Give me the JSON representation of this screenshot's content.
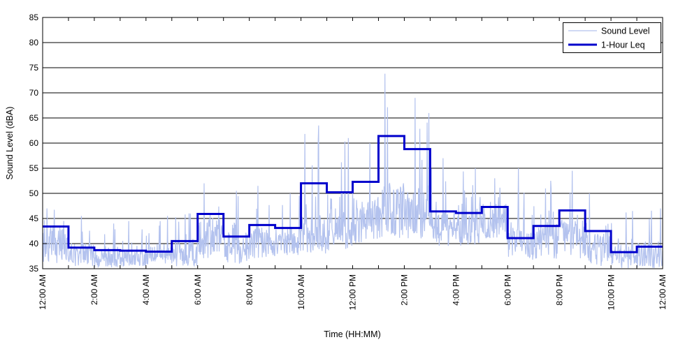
{
  "figure": {
    "background": "#ffffff",
    "axis_color": "#000000",
    "legend": [
      {
        "label": "Sound Level",
        "color": "#b3c2ee",
        "stroke_width": 1.2
      },
      {
        "label": "1-Hour Leq",
        "color": "#0000cc",
        "stroke_width": 3
      }
    ]
  },
  "chart_data": {
    "type": "line",
    "title": "",
    "xlabel": "Time (HH:MM)",
    "ylabel": "Sound Level (dBA)",
    "ylim": [
      35,
      85
    ],
    "xlim_hours": [
      0,
      24
    ],
    "y_ticks": [
      35,
      40,
      45,
      50,
      55,
      60,
      65,
      70,
      75,
      80,
      85
    ],
    "x_tick_labels": [
      "12:00 AM",
      "2:00 AM",
      "4:00 AM",
      "6:00 AM",
      "8:00 AM",
      "10:00 AM",
      "12:00 PM",
      "2:00 PM",
      "4:00 PM",
      "6:00 PM",
      "8:00 PM",
      "10:00 PM",
      "12:00 AM"
    ],
    "x_tick_interval_hours": 2,
    "minor_tick_interval_hours": 1,
    "grid": "horizontal solid black lines every 5 dBA, no vertical gridlines",
    "legend_position": "top-right inside plot",
    "series": [
      {
        "name": "1-Hour Leq",
        "style": "step",
        "color": "#0000cc",
        "hours": [
          0,
          1,
          2,
          3,
          4,
          5,
          6,
          7,
          8,
          9,
          10,
          11,
          12,
          13,
          14,
          15,
          16,
          17,
          18,
          19,
          20,
          21,
          22,
          23
        ],
        "values": [
          43.4,
          39.2,
          38.7,
          38.6,
          38.4,
          40.5,
          45.9,
          41.4,
          43.7,
          43.1,
          52.0,
          50.2,
          52.3,
          61.4,
          58.8,
          46.4,
          46.1,
          47.3,
          41.1,
          43.5,
          46.6,
          42.5,
          38.3,
          39.4
        ]
      },
      {
        "name": "Sound Level",
        "style": "noisy high-rate samples (~1 minute)",
        "color": "#b3c2ee",
        "hourly_envelope": [
          {
            "hour": 0,
            "low": 36.0,
            "typical": 41.0,
            "peak": 47.0,
            "peak_minute": 10
          },
          {
            "hour": 1,
            "low": 35.5,
            "typical": 38.5,
            "peak": 45.5,
            "peak_minute": 30
          },
          {
            "hour": 2,
            "low": 35.2,
            "typical": 37.5,
            "peak": 44.0,
            "peak_minute": 45
          },
          {
            "hour": 3,
            "low": 35.4,
            "typical": 37.5,
            "peak": 44.5,
            "peak_minute": 20
          },
          {
            "hour": 4,
            "low": 35.5,
            "typical": 38.0,
            "peak": 45.5,
            "peak_minute": 50
          },
          {
            "hour": 5,
            "low": 35.5,
            "typical": 38.5,
            "peak": 46.0,
            "peak_minute": 40
          },
          {
            "hour": 6,
            "low": 37.0,
            "typical": 42.0,
            "peak": 52.0,
            "peak_minute": 15
          },
          {
            "hour": 7,
            "low": 36.0,
            "typical": 40.0,
            "peak": 50.5,
            "peak_minute": 30
          },
          {
            "hour": 8,
            "low": 37.0,
            "typical": 41.0,
            "peak": 51.5,
            "peak_minute": 20
          },
          {
            "hour": 9,
            "low": 37.5,
            "typical": 41.0,
            "peak": 50.0,
            "peak_minute": 35
          },
          {
            "hour": 10,
            "low": 38.0,
            "typical": 43.0,
            "peak": 63.5,
            "peak_minute": 41
          },
          {
            "hour": 11,
            "low": 38.5,
            "typical": 44.0,
            "peak": 61.0,
            "peak_minute": 50
          },
          {
            "hour": 12,
            "low": 40.0,
            "typical": 46.0,
            "peak": 60.0,
            "peak_minute": 40
          },
          {
            "hour": 13,
            "low": 41.0,
            "typical": 48.0,
            "peak": 73.8,
            "peak_minute": 15
          },
          {
            "hour": 14,
            "low": 41.0,
            "typical": 47.0,
            "peak": 69.0,
            "peak_minute": 25
          },
          {
            "hour": 15,
            "low": 39.5,
            "typical": 44.0,
            "peak": 57.0,
            "peak_minute": 30
          },
          {
            "hour": 16,
            "low": 39.5,
            "typical": 44.0,
            "peak": 55.0,
            "peak_minute": 45
          },
          {
            "hour": 17,
            "low": 41.0,
            "typical": 46.0,
            "peak": 53.0,
            "peak_minute": 30
          },
          {
            "hour": 18,
            "low": 36.5,
            "typical": 41.0,
            "peak": 55.0,
            "peak_minute": 25
          },
          {
            "hour": 19,
            "low": 37.0,
            "typical": 41.5,
            "peak": 52.5,
            "peak_minute": 40
          },
          {
            "hour": 20,
            "low": 37.0,
            "typical": 42.0,
            "peak": 54.5,
            "peak_minute": 30
          },
          {
            "hour": 21,
            "low": 35.5,
            "typical": 40.0,
            "peak": 50.0,
            "peak_minute": 10
          },
          {
            "hour": 22,
            "low": 35.0,
            "typical": 38.0,
            "peak": 46.5,
            "peak_minute": 50
          },
          {
            "hour": 23,
            "low": 35.0,
            "typical": 38.5,
            "peak": 47.0,
            "peak_minute": 55
          }
        ]
      }
    ]
  }
}
